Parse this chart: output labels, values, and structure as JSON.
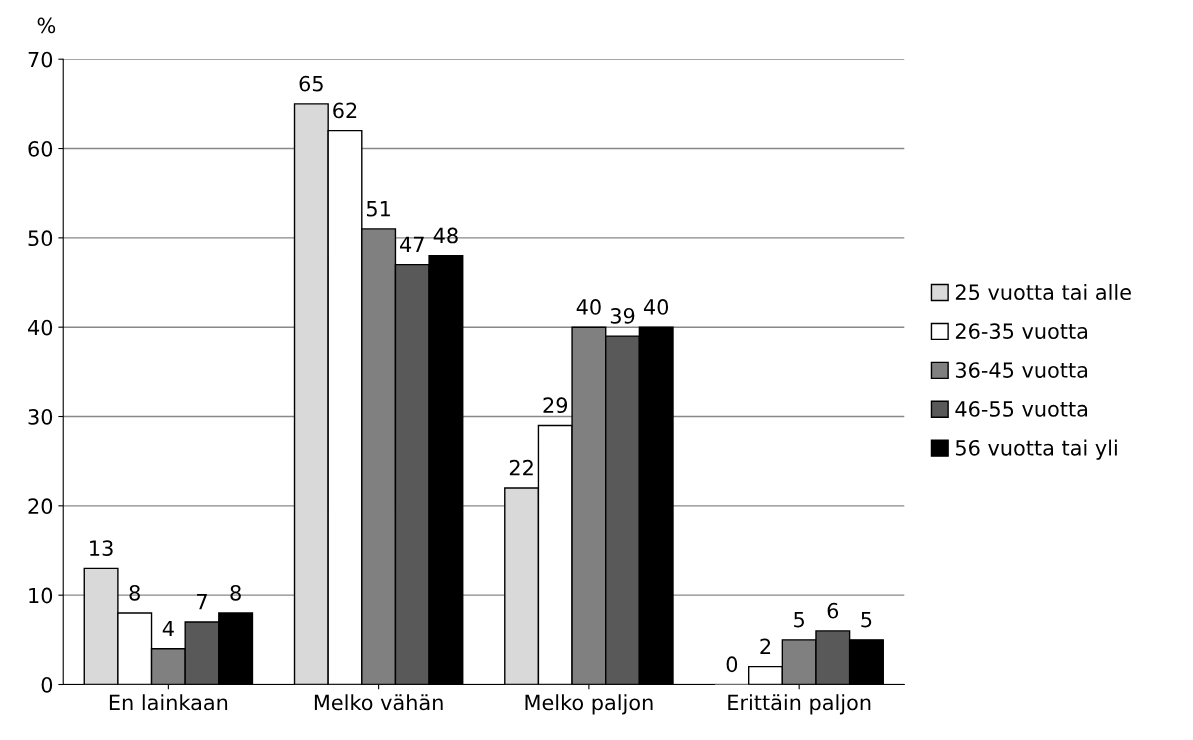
{
  "chart_data": {
    "type": "bar",
    "ylabel": "%",
    "categories": [
      "En lainkaan",
      "Melko vähän",
      "Melko paljon",
      "Erittäin paljon"
    ],
    "series": [
      {
        "name": "25 vuotta tai alle",
        "color": "#d9d9d9",
        "values": [
          13,
          65,
          22,
          0
        ]
      },
      {
        "name": "26-35 vuotta",
        "color": "#ffffff",
        "values": [
          8,
          62,
          29,
          2
        ]
      },
      {
        "name": "36-45 vuotta",
        "color": "#808080",
        "values": [
          4,
          51,
          40,
          5
        ]
      },
      {
        "name": "46-55 vuotta",
        "color": "#595959",
        "values": [
          7,
          47,
          39,
          6
        ]
      },
      {
        "name": "56 vuotta tai yli",
        "color": "#000000",
        "values": [
          8,
          48,
          40,
          5
        ]
      }
    ],
    "ylim": [
      0,
      70
    ],
    "yticks": [
      0,
      10,
      20,
      30,
      40,
      50,
      60,
      70
    ],
    "grid": "y",
    "legend": "right",
    "data_labels": true
  }
}
